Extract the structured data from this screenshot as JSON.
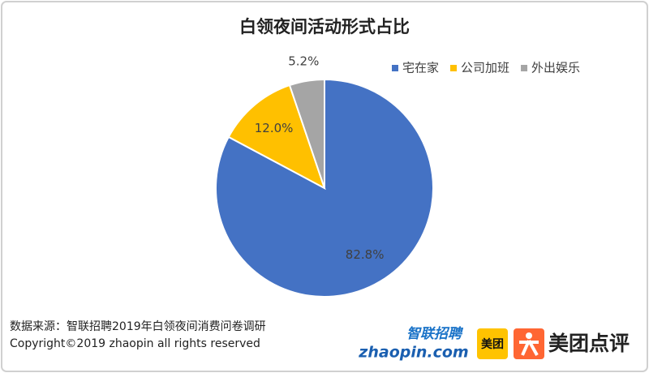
{
  "chart_data": {
    "type": "pie",
    "title": "白领夜间活动形式占比",
    "categories": [
      "宅在家",
      "公司加班",
      "外出娱乐"
    ],
    "values": [
      82.8,
      12.0,
      5.2
    ],
    "value_labels": [
      "82.8%",
      "12.0%",
      "5.2%"
    ],
    "colors": [
      "#4472c4",
      "#ffc000",
      "#a5a5a5"
    ],
    "legend": "top-right"
  },
  "footer": {
    "source": "数据来源：智联招聘2019年白领夜间消费问卷调研",
    "copyright": "Copyright©2019 zhaopin all rights reserved"
  },
  "logos": {
    "zhaopin_cn": "智联招聘",
    "zhaopin_en": "zhaopin.com",
    "meituan": "美团",
    "dianping": "美团点评"
  }
}
